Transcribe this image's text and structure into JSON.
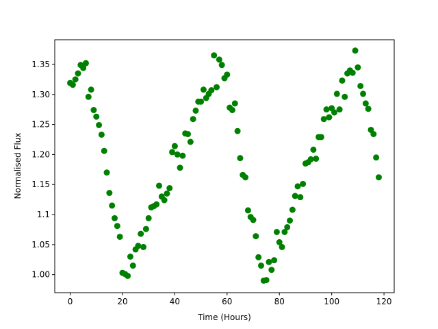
{
  "chart_data": {
    "type": "scatter",
    "xlabel": "Time (Hours)",
    "ylabel": "Normalised Flux",
    "color": "#008000",
    "x": [
      0,
      1,
      2,
      3,
      4,
      5,
      6,
      7,
      8,
      9,
      10,
      11,
      12,
      13,
      14,
      15,
      16,
      17,
      18,
      19,
      20,
      21,
      22,
      23,
      24,
      25,
      26,
      27,
      28,
      29,
      30,
      31,
      32,
      33,
      34,
      35,
      36,
      37,
      38,
      39,
      40,
      41,
      42,
      43,
      44,
      45,
      46,
      47,
      48,
      49,
      50,
      51,
      52,
      53,
      54,
      55,
      56,
      57,
      58,
      59,
      60,
      61,
      62,
      63,
      64,
      65,
      66,
      67,
      68,
      69,
      70,
      71,
      72,
      73,
      74,
      75,
      76,
      77,
      78,
      79,
      80,
      81,
      82,
      83,
      84,
      85,
      86,
      87,
      88,
      89,
      90,
      91,
      92,
      93,
      94,
      95,
      96,
      97,
      98,
      99,
      100,
      101,
      102,
      103,
      104,
      105,
      106,
      107,
      108,
      109,
      110,
      111,
      112,
      113,
      114,
      115,
      116,
      117,
      118
    ],
    "values": [
      1.319,
      1.316,
      1.325,
      1.335,
      1.349,
      1.344,
      1.352,
      1.296,
      1.308,
      1.274,
      1.263,
      1.249,
      1.233,
      1.206,
      1.17,
      1.136,
      1.115,
      1.094,
      1.081,
      1.063,
      1.003,
      1.001,
      0.998,
      1.03,
      1.015,
      1.042,
      1.048,
      1.068,
      1.046,
      1.076,
      1.094,
      1.112,
      1.114,
      1.117,
      1.148,
      1.13,
      1.124,
      1.135,
      1.144,
      1.204,
      1.214,
      1.2,
      1.178,
      1.198,
      1.235,
      1.234,
      1.221,
      1.259,
      1.273,
      1.288,
      1.288,
      1.308,
      1.294,
      1.301,
      1.307,
      1.365,
      1.312,
      1.358,
      1.349,
      1.327,
      1.333,
      1.278,
      1.274,
      1.285,
      1.239,
      1.194,
      1.166,
      1.162,
      1.107,
      1.096,
      1.091,
      1.064,
      1.029,
      1.015,
      0.99,
      0.991,
      1.021,
      1.008,
      1.024,
      1.071,
      1.054,
      1.046,
      1.071,
      1.079,
      1.09,
      1.108,
      1.131,
      1.147,
      1.129,
      1.151,
      1.185,
      1.187,
      1.192,
      1.208,
      1.193,
      1.229,
      1.229,
      1.259,
      1.275,
      1.262,
      1.277,
      1.27,
      1.301,
      1.275,
      1.323,
      1.296,
      1.335,
      1.34,
      1.336,
      1.373,
      1.345,
      1.314,
      1.301,
      1.285,
      1.276,
      1.241,
      1.234,
      1.195,
      1.162
    ],
    "xlim": [
      -5.9,
      123.9
    ],
    "xticks": [
      0,
      20,
      40,
      60,
      80,
      100,
      120
    ],
    "ylim": [
      0.97,
      1.391
    ],
    "yticks": [
      {
        "value": 1.0,
        "label": "1.00"
      },
      {
        "value": 1.05,
        "label": "1.05"
      },
      1.1,
      {
        "value": 1.15,
        "label": "1.15"
      },
      {
        "value": 1.2,
        "label": "1.20"
      },
      {
        "value": 1.25,
        "label": "1.25"
      },
      {
        "value": 1.3,
        "label": "1.30"
      },
      {
        "value": 1.35,
        "label": "1.35"
      }
    ]
  }
}
